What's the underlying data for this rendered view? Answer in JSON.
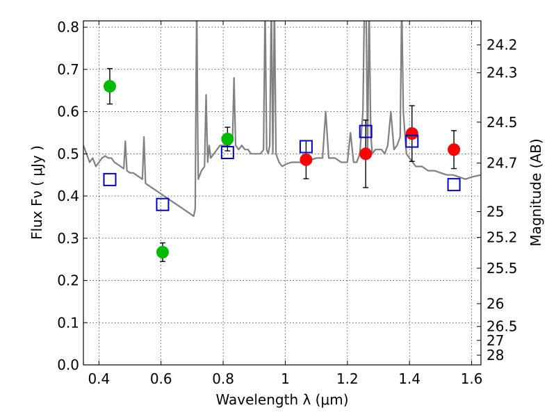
{
  "chart_data": {
    "type": "scatter",
    "xlabel": "Wavelength  λ (μm)",
    "ylabel": "Flux  Fν  ( μJy )",
    "y2label": "Magnitude (AB)",
    "xlim": [
      0.35,
      1.63
    ],
    "ylim": [
      0.0,
      0.815
    ],
    "grid": true,
    "x_ticks": [
      {
        "value": 0.4,
        "label": "0.4"
      },
      {
        "value": 0.6,
        "label": "0.6"
      },
      {
        "value": 0.8,
        "label": "0.8"
      },
      {
        "value": 1.0,
        "label": "1"
      },
      {
        "value": 1.2,
        "label": "1.2"
      },
      {
        "value": 1.4,
        "label": "1.4"
      },
      {
        "value": 1.6,
        "label": "1.6"
      }
    ],
    "y_ticks": [
      {
        "value": 0.0,
        "label": "0.0"
      },
      {
        "value": 0.1,
        "label": "0.1"
      },
      {
        "value": 0.2,
        "label": "0.2"
      },
      {
        "value": 0.3,
        "label": "0.3"
      },
      {
        "value": 0.4,
        "label": "0.4"
      },
      {
        "value": 0.5,
        "label": "0.5"
      },
      {
        "value": 0.6,
        "label": "0.6"
      },
      {
        "value": 0.7,
        "label": "0.7"
      },
      {
        "value": 0.8,
        "label": "0.8"
      }
    ],
    "y2_ticks": [
      {
        "label": "24.2",
        "flux": 0.758
      },
      {
        "label": "24.3",
        "flux": 0.692
      },
      {
        "label": "24.5",
        "flux": 0.575
      },
      {
        "label": "24.7",
        "flux": 0.478
      },
      {
        "label": "25",
        "flux": 0.363
      },
      {
        "label": "25.2",
        "flux": 0.302
      },
      {
        "label": "25.5",
        "flux": 0.229
      },
      {
        "label": "26",
        "flux": 0.145
      },
      {
        "label": "26.5",
        "flux": 0.091
      },
      {
        "label": "27",
        "flux": 0.058
      },
      {
        "label": "28",
        "flux": 0.023
      }
    ],
    "series": [
      {
        "kind": "circle",
        "color": "#00bb00",
        "points": [
          {
            "x": 0.435,
            "y": 0.66,
            "err": 0.042
          },
          {
            "x": 0.605,
            "y": 0.267,
            "err": 0.022
          },
          {
            "x": 0.814,
            "y": 0.535,
            "err": 0.028
          }
        ]
      },
      {
        "kind": "circle",
        "color": "#ff0000",
        "points": [
          {
            "x": 1.067,
            "y": 0.486,
            "err": 0.045
          },
          {
            "x": 1.259,
            "y": 0.5,
            "err": 0.08
          },
          {
            "x": 1.408,
            "y": 0.548,
            "err": 0.066
          },
          {
            "x": 1.543,
            "y": 0.51,
            "err": 0.045
          }
        ]
      },
      {
        "kind": "square",
        "color": "#0000cc",
        "points": [
          {
            "x": 0.435,
            "y": 0.439
          },
          {
            "x": 0.605,
            "y": 0.38
          },
          {
            "x": 0.814,
            "y": 0.503
          },
          {
            "x": 1.067,
            "y": 0.517
          },
          {
            "x": 1.259,
            "y": 0.553
          },
          {
            "x": 1.408,
            "y": 0.53
          },
          {
            "x": 1.543,
            "y": 0.427
          }
        ]
      }
    ],
    "model_spectrum": {
      "color": "#808080",
      "x": [
        0.35,
        0.36,
        0.37,
        0.38,
        0.39,
        0.4,
        0.41,
        0.42,
        0.43,
        0.44,
        0.45,
        0.46,
        0.47,
        0.48,
        0.485,
        0.49,
        0.5,
        0.51,
        0.52,
        0.53,
        0.54,
        0.545,
        0.55,
        0.56,
        0.57,
        0.58,
        0.59,
        0.6,
        0.62,
        0.64,
        0.66,
        0.68,
        0.69,
        0.7,
        0.705,
        0.71,
        0.712,
        0.715,
        0.718,
        0.72,
        0.725,
        0.73,
        0.74,
        0.745,
        0.75,
        0.755,
        0.76,
        0.77,
        0.78,
        0.79,
        0.8,
        0.81,
        0.82,
        0.83,
        0.835,
        0.84,
        0.85,
        0.86,
        0.87,
        0.88,
        0.89,
        0.9,
        0.91,
        0.92,
        0.93,
        0.935,
        0.94,
        0.945,
        0.95,
        0.955,
        0.96,
        0.965,
        0.97,
        0.975,
        0.98,
        0.99,
        1.0,
        1.02,
        1.04,
        1.06,
        1.08,
        1.1,
        1.12,
        1.13,
        1.14,
        1.16,
        1.18,
        1.2,
        1.21,
        1.22,
        1.23,
        1.24,
        1.25,
        1.255,
        1.26,
        1.265,
        1.27,
        1.275,
        1.28,
        1.29,
        1.3,
        1.31,
        1.32,
        1.33,
        1.34,
        1.35,
        1.36,
        1.37,
        1.375,
        1.38,
        1.385,
        1.39,
        1.4,
        1.41,
        1.42,
        1.44,
        1.46,
        1.48,
        1.5,
        1.52,
        1.54,
        1.56,
        1.58,
        1.6,
        1.63
      ],
      "y": [
        0.52,
        0.5,
        0.48,
        0.49,
        0.47,
        0.48,
        0.49,
        0.495,
        0.49,
        0.49,
        0.48,
        0.475,
        0.47,
        0.465,
        0.53,
        0.46,
        0.455,
        0.455,
        0.45,
        0.445,
        0.44,
        0.54,
        0.43,
        0.425,
        0.42,
        0.415,
        0.41,
        0.405,
        0.395,
        0.385,
        0.375,
        0.365,
        0.36,
        0.355,
        0.352,
        0.37,
        0.6,
        0.86,
        0.55,
        0.44,
        0.45,
        0.46,
        0.47,
        0.64,
        0.48,
        0.52,
        0.49,
        0.5,
        0.51,
        0.52,
        0.52,
        0.52,
        0.52,
        0.53,
        0.68,
        0.52,
        0.51,
        0.52,
        0.51,
        0.51,
        0.5,
        0.5,
        0.5,
        0.5,
        0.51,
        0.86,
        0.51,
        0.5,
        0.52,
        0.86,
        0.5,
        0.86,
        0.5,
        0.49,
        0.48,
        0.47,
        0.475,
        0.48,
        0.48,
        0.48,
        0.485,
        0.49,
        0.49,
        0.6,
        0.49,
        0.49,
        0.48,
        0.48,
        0.55,
        0.48,
        0.48,
        0.5,
        0.6,
        0.86,
        0.86,
        0.5,
        0.86,
        0.55,
        0.5,
        0.51,
        0.51,
        0.51,
        0.5,
        0.52,
        0.6,
        0.51,
        0.52,
        0.54,
        0.86,
        0.6,
        0.55,
        0.5,
        0.49,
        0.48,
        0.47,
        0.47,
        0.46,
        0.46,
        0.455,
        0.45,
        0.45,
        0.445,
        0.44,
        0.445,
        0.45
      ]
    }
  }
}
